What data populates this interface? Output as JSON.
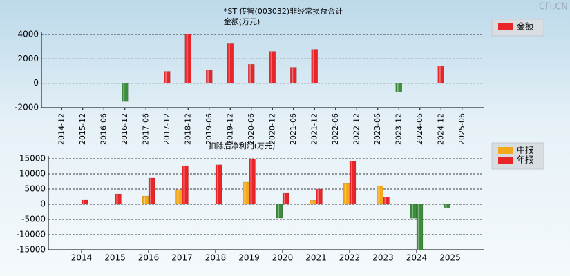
{
  "watermark": "CFi.CN",
  "chart_data": [
    {
      "type": "bar",
      "title": "*ST 传智(003032)非经常损益合计",
      "y_label": "金额(万元)",
      "categories": [
        "2014-12",
        "2015-12",
        "2016-06",
        "2016-12",
        "2017-06",
        "2017-12",
        "2018-12",
        "2019-06",
        "2019-12",
        "2020-06",
        "2020-12",
        "2021-06",
        "2021-12",
        "2022-06",
        "2022-12",
        "2023-06",
        "2023-12",
        "2024-06",
        "2024-12",
        "2025-06"
      ],
      "series": [
        {
          "name": "金额",
          "color": "#e8262a",
          "values": [
            null,
            null,
            null,
            -1500,
            null,
            970,
            4000,
            1080,
            3240,
            1550,
            2610,
            1310,
            2780,
            null,
            null,
            null,
            -740,
            null,
            1420,
            null
          ]
        }
      ],
      "negative_color": "#3c8c3c",
      "ylim": [
        -2000,
        4000
      ],
      "yticks": [
        -2000,
        0,
        2000,
        4000
      ],
      "grid": true,
      "legend": "right"
    },
    {
      "type": "bar",
      "title": "扣除后净利润(万元)",
      "categories": [
        "2014",
        "2015",
        "2016",
        "2017",
        "2018",
        "2019",
        "2020",
        "2021",
        "2022",
        "2023",
        "2024",
        "2025"
      ],
      "series": [
        {
          "name": "中报",
          "color": "#f4a81c",
          "values": [
            null,
            null,
            2700,
            4800,
            null,
            7270,
            -4550,
            1300,
            7000,
            6100,
            -4600,
            -1100
          ]
        },
        {
          "name": "年报",
          "color": "#e8262a",
          "values": [
            1360,
            3400,
            8640,
            12700,
            13000,
            14900,
            3860,
            5000,
            14100,
            2300,
            -15000,
            null
          ]
        }
      ],
      "negative_color": "#3c8c3c",
      "ylim": [
        -15000,
        15000
      ],
      "yticks": [
        -15000,
        -10000,
        -5000,
        0,
        5000,
        10000,
        15000
      ],
      "grid": true,
      "legend": "right"
    }
  ]
}
